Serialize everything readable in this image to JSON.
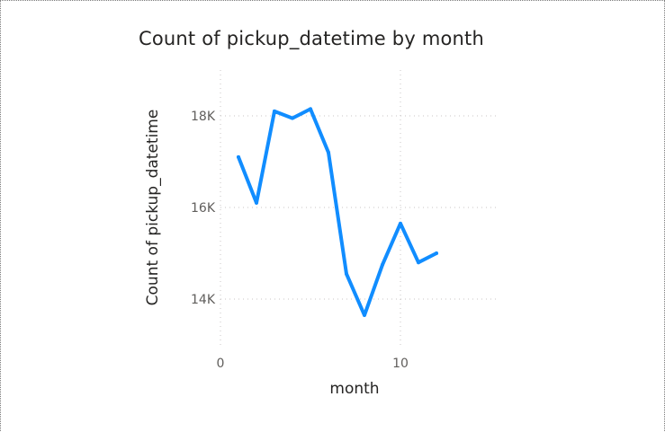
{
  "chart_data": {
    "type": "line",
    "title": "Count of pickup_datetime by month",
    "xlabel": "month",
    "ylabel": "Count of pickup_datetime",
    "x_ticks": [
      0,
      10
    ],
    "x_tick_labels": [
      "0",
      "10"
    ],
    "y_ticks": [
      14000,
      16000,
      18000
    ],
    "y_tick_labels": [
      "14K",
      "16K",
      "18K"
    ],
    "xlim": [
      0,
      15.5
    ],
    "ylim": [
      13000,
      19000
    ],
    "grid": "dotted horizontal and vertical",
    "legend": "none",
    "series": [
      {
        "color": "#118DFF",
        "x": [
          1,
          2,
          3,
          4,
          5,
          6,
          7,
          8,
          9,
          10,
          11,
          12
        ],
        "y": [
          17100,
          16100,
          18100,
          17950,
          18150,
          17200,
          14550,
          13650,
          14750,
          15650,
          14800,
          15000
        ]
      }
    ]
  }
}
